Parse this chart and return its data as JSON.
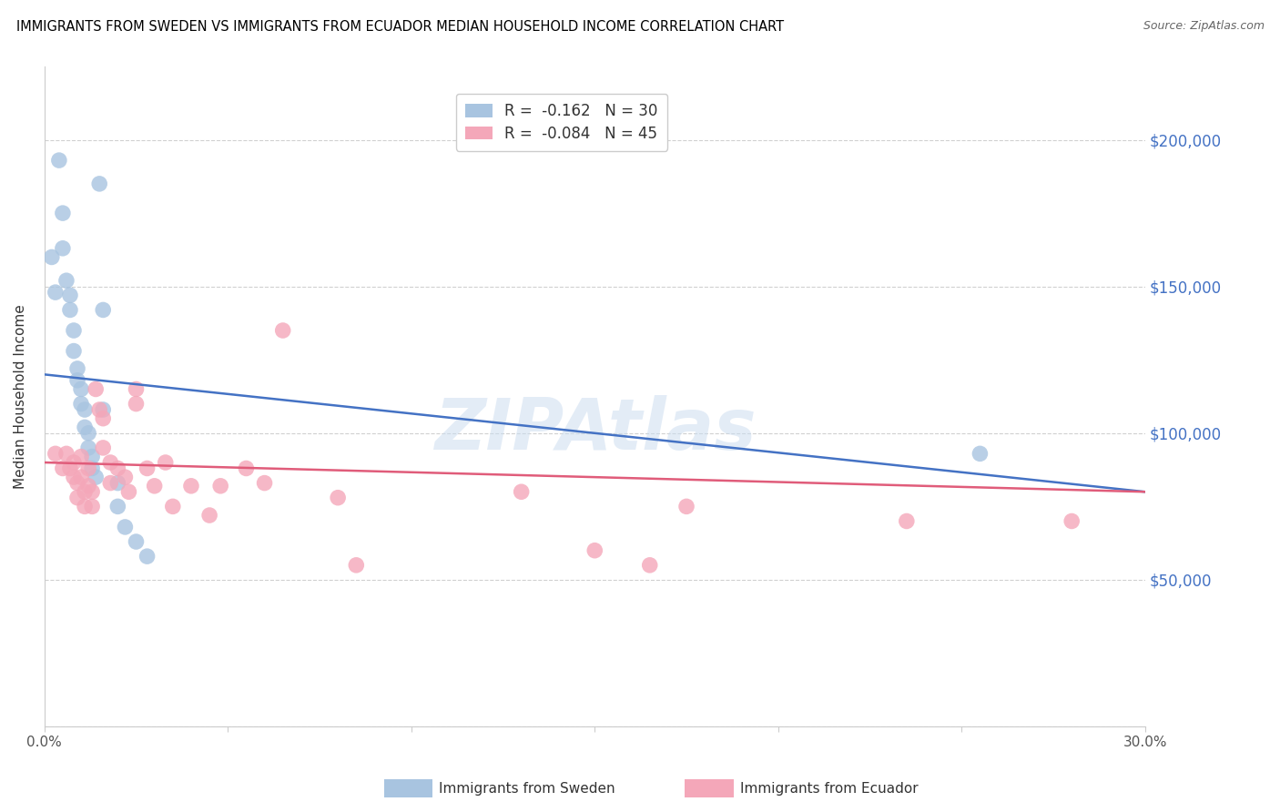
{
  "title": "IMMIGRANTS FROM SWEDEN VS IMMIGRANTS FROM ECUADOR MEDIAN HOUSEHOLD INCOME CORRELATION CHART",
  "source": "Source: ZipAtlas.com",
  "ylabel": "Median Household Income",
  "watermark": "ZIPAtlas",
  "y_ticks": [
    0,
    50000,
    100000,
    150000,
    200000
  ],
  "y_tick_labels": [
    "",
    "$50,000",
    "$100,000",
    "$150,000",
    "$200,000"
  ],
  "xlim": [
    0.0,
    0.3
  ],
  "ylim": [
    0,
    225000
  ],
  "sweden_color": "#a8c4e0",
  "ecuador_color": "#f4a7b9",
  "sweden_line_color": "#4472c4",
  "ecuador_line_color": "#e05c7a",
  "sweden_R": -0.162,
  "sweden_N": 30,
  "ecuador_R": -0.084,
  "ecuador_N": 45,
  "sweden_points_x": [
    0.002,
    0.003,
    0.004,
    0.005,
    0.005,
    0.006,
    0.007,
    0.007,
    0.008,
    0.008,
    0.009,
    0.009,
    0.01,
    0.01,
    0.011,
    0.011,
    0.012,
    0.012,
    0.013,
    0.013,
    0.014,
    0.015,
    0.016,
    0.016,
    0.02,
    0.02,
    0.022,
    0.025,
    0.028,
    0.255
  ],
  "sweden_points_y": [
    160000,
    148000,
    193000,
    175000,
    163000,
    152000,
    147000,
    142000,
    135000,
    128000,
    122000,
    118000,
    115000,
    110000,
    108000,
    102000,
    100000,
    95000,
    92000,
    88000,
    85000,
    185000,
    142000,
    108000,
    83000,
    75000,
    68000,
    63000,
    58000,
    93000
  ],
  "ecuador_points_x": [
    0.003,
    0.005,
    0.006,
    0.007,
    0.008,
    0.008,
    0.009,
    0.009,
    0.01,
    0.01,
    0.011,
    0.011,
    0.012,
    0.012,
    0.013,
    0.013,
    0.014,
    0.015,
    0.016,
    0.016,
    0.018,
    0.018,
    0.02,
    0.022,
    0.023,
    0.025,
    0.025,
    0.028,
    0.03,
    0.033,
    0.035,
    0.04,
    0.045,
    0.048,
    0.055,
    0.06,
    0.065,
    0.08,
    0.085,
    0.13,
    0.15,
    0.165,
    0.175,
    0.235,
    0.28
  ],
  "ecuador_points_y": [
    93000,
    88000,
    93000,
    88000,
    90000,
    85000,
    83000,
    78000,
    92000,
    85000,
    80000,
    75000,
    88000,
    82000,
    80000,
    75000,
    115000,
    108000,
    105000,
    95000,
    90000,
    83000,
    88000,
    85000,
    80000,
    115000,
    110000,
    88000,
    82000,
    90000,
    75000,
    82000,
    72000,
    82000,
    88000,
    83000,
    135000,
    78000,
    55000,
    80000,
    60000,
    55000,
    75000,
    70000,
    70000
  ],
  "grid_color": "#d0d0d0"
}
